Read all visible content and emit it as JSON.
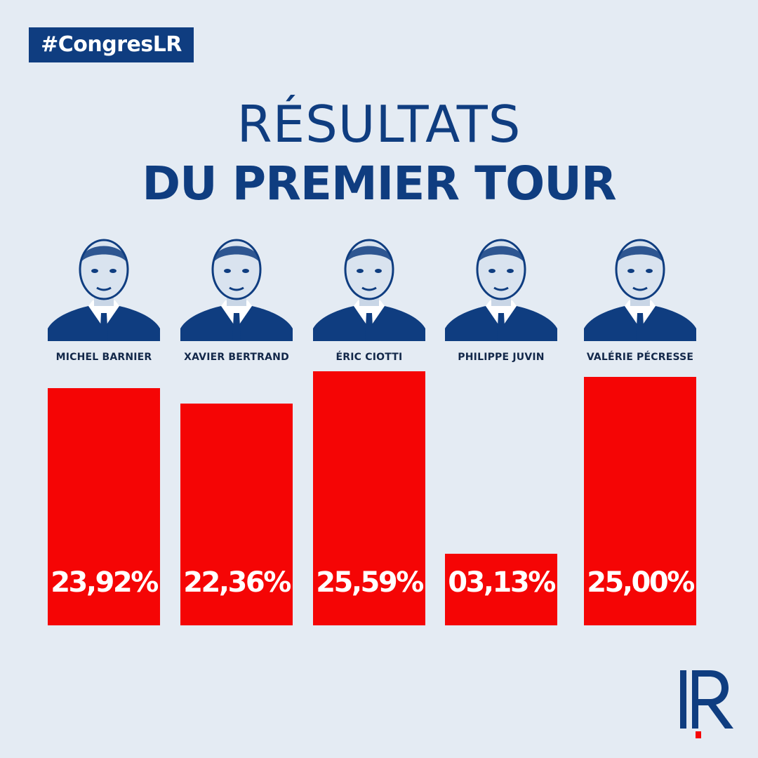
{
  "header": {
    "hashtag": "#CongresLR",
    "title_line1": "RÉSULTATS",
    "title_line2": "DU PREMIER TOUR"
  },
  "logo": {
    "text": "LR"
  },
  "colors": {
    "background": "#e4ebf3",
    "brand_blue": "#0f3d80",
    "bar_red": "#f50505",
    "text_dark": "#13284a"
  },
  "chart_data": {
    "type": "bar",
    "categories": [
      "MICHEL BARNIER",
      "XAVIER BERTRAND",
      "ÉRIC CIOTTI",
      "PHILIPPE JUVIN",
      "VALÉRIE PÉCRESSE"
    ],
    "values": [
      23.92,
      22.36,
      25.59,
      3.13,
      25.0
    ],
    "value_labels": [
      "23,92%",
      "22,36%",
      "25,59%",
      "03,13%",
      "25,00%"
    ],
    "title": "RÉSULTATS DU PREMIER TOUR",
    "xlabel": "",
    "ylabel": "",
    "ylim": [
      0,
      25.59
    ],
    "grid": false,
    "legend": "none"
  }
}
